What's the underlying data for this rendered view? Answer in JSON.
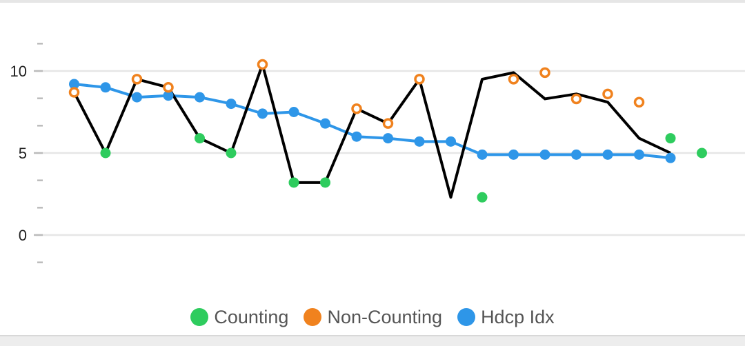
{
  "chart_data": {
    "type": "line",
    "y_ticks": [
      "0",
      "5",
      "10"
    ],
    "ylim": [
      -2,
      13
    ],
    "grid": "horizontal",
    "legend_placement": "bottom",
    "line_color": "#000000",
    "series": [
      {
        "name": "Counting",
        "color": "#2ecc5e",
        "points": [
          [
            1,
            5
          ],
          [
            4,
            5.9
          ],
          [
            5,
            5
          ],
          [
            7,
            3.2
          ],
          [
            8,
            3.2
          ],
          [
            13,
            2.3
          ],
          [
            19,
            5.9
          ],
          [
            20,
            5
          ]
        ]
      },
      {
        "name": "Non-Counting",
        "color": "#f0821e",
        "points": [
          [
            0,
            8.7
          ],
          [
            2,
            9.5
          ],
          [
            3,
            9.0
          ],
          [
            6,
            10.4
          ],
          [
            9,
            7.7
          ],
          [
            10,
            6.8
          ],
          [
            11,
            9.5
          ],
          [
            14,
            9.5
          ],
          [
            15,
            9.9
          ],
          [
            16,
            8.3
          ],
          [
            17,
            8.6
          ],
          [
            18,
            8.1
          ]
        ]
      },
      {
        "name": "Hdcp Idx",
        "color": "#2e96e8",
        "values": [
          9.2,
          9.0,
          8.4,
          8.5,
          8.4,
          8.0,
          7.4,
          7.5,
          6.8,
          6.0,
          5.9,
          5.7,
          5.7,
          4.9,
          4.9,
          4.9,
          4.9,
          4.9,
          4.9,
          4.7
        ]
      }
    ],
    "score_line": [
      8.7,
      5,
      9.5,
      9.0,
      5.9,
      5,
      10.4,
      3.2,
      3.2,
      7.7,
      6.8,
      9.5,
      2.3,
      9.5,
      9.9,
      8.3,
      8.6,
      8.1,
      5.9,
      5
    ]
  }
}
